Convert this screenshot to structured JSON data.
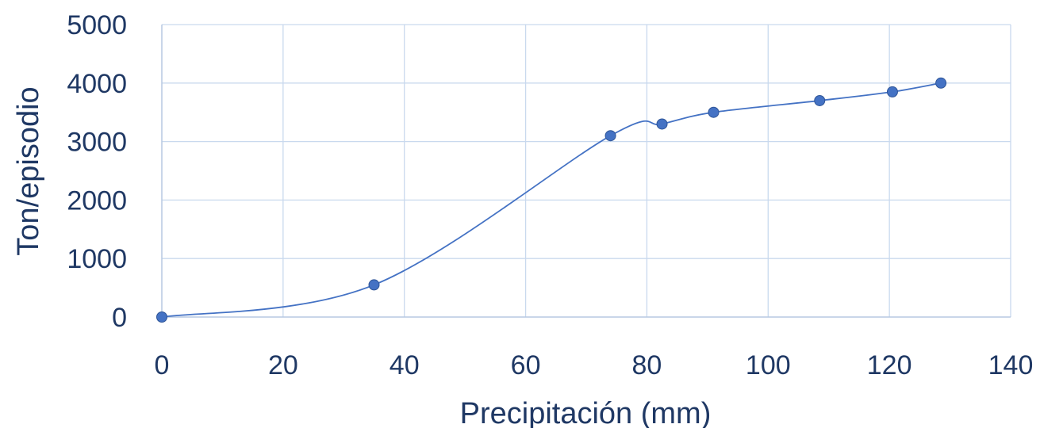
{
  "chart_data": {
    "type": "scatter",
    "smooth": true,
    "markers": true,
    "grid": true,
    "title": "",
    "xlabel": "Precipitación (mm)",
    "ylabel": "Ton/episodio",
    "xlim": [
      0,
      140
    ],
    "ylim": [
      0,
      5000
    ],
    "xticks": [
      0,
      20,
      40,
      60,
      80,
      100,
      120,
      140
    ],
    "yticks": [
      0,
      1000,
      2000,
      3000,
      4000,
      5000
    ],
    "series": [
      {
        "color": "#4472c4",
        "x": [
          0,
          35,
          74,
          82.5,
          91,
          108.5,
          120.5,
          128.5
        ],
        "y": [
          0,
          550,
          3100,
          3300,
          3500,
          3700,
          3850,
          4000
        ]
      }
    ]
  }
}
